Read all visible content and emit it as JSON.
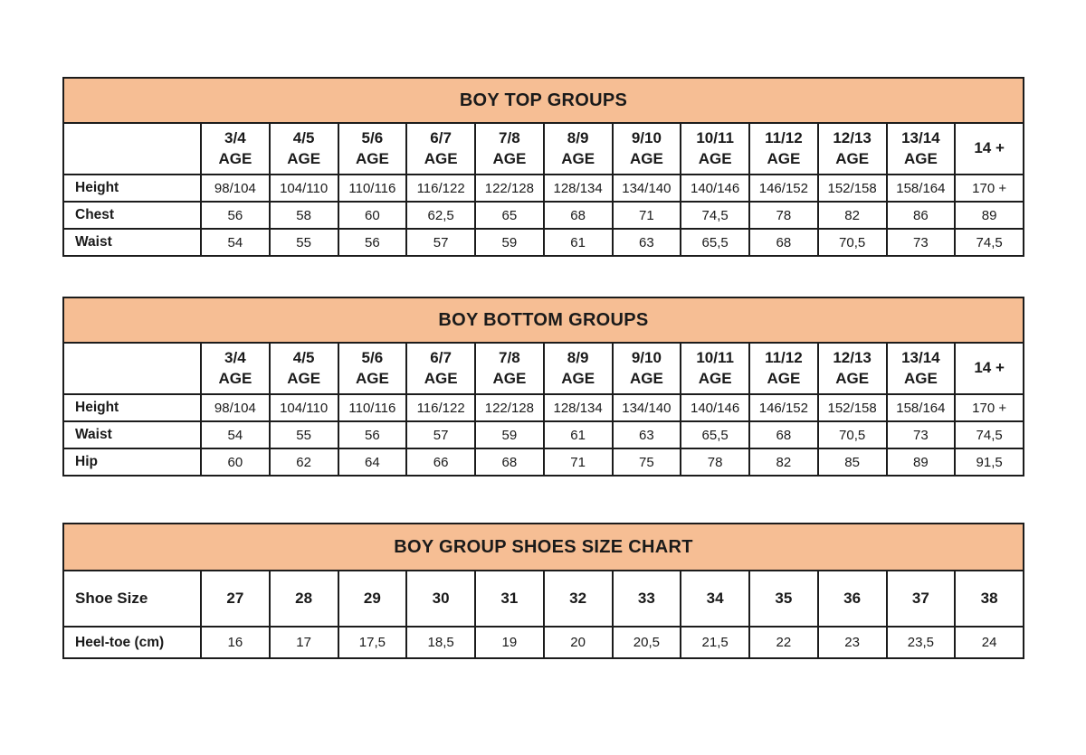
{
  "theme": {
    "header_bg": "#F6BE94",
    "border_color": "#1c1c1c",
    "text_color": "#1a1a1a",
    "page_bg": "#ffffff"
  },
  "tables": [
    {
      "title": "BOY TOP GROUPS",
      "header": {
        "label": "",
        "cells": [
          [
            "3/4",
            "AGE"
          ],
          [
            "4/5",
            "AGE"
          ],
          [
            "5/6",
            "AGE"
          ],
          [
            "6/7",
            "AGE"
          ],
          [
            "7/8",
            "AGE"
          ],
          [
            "8/9",
            "AGE"
          ],
          [
            "9/10",
            "AGE"
          ],
          [
            "10/11",
            "AGE"
          ],
          [
            "11/12",
            "AGE"
          ],
          [
            "12/13",
            "AGE"
          ],
          [
            "13/14",
            "AGE"
          ],
          [
            "14 +"
          ]
        ]
      },
      "rows": [
        {
          "label": "Height",
          "values": [
            "98/104",
            "104/110",
            "110/116",
            "116/122",
            "122/128",
            "128/134",
            "134/140",
            "140/146",
            "146/152",
            "152/158",
            "158/164",
            "170 +"
          ]
        },
        {
          "label": "Chest",
          "values": [
            "56",
            "58",
            "60",
            "62,5",
            "65",
            "68",
            "71",
            "74,5",
            "78",
            "82",
            "86",
            "89"
          ]
        },
        {
          "label": "Waist",
          "values": [
            "54",
            "55",
            "56",
            "57",
            "59",
            "61",
            "63",
            "65,5",
            "68",
            "70,5",
            "73",
            "74,5"
          ]
        }
      ]
    },
    {
      "title": "BOY BOTTOM GROUPS",
      "header": {
        "label": "",
        "cells": [
          [
            "3/4",
            "AGE"
          ],
          [
            "4/5",
            "AGE"
          ],
          [
            "5/6",
            "AGE"
          ],
          [
            "6/7",
            "AGE"
          ],
          [
            "7/8",
            "AGE"
          ],
          [
            "8/9",
            "AGE"
          ],
          [
            "9/10",
            "AGE"
          ],
          [
            "10/11",
            "AGE"
          ],
          [
            "11/12",
            "AGE"
          ],
          [
            "12/13",
            "AGE"
          ],
          [
            "13/14",
            "AGE"
          ],
          [
            "14 +"
          ]
        ]
      },
      "rows": [
        {
          "label": "Height",
          "values": [
            "98/104",
            "104/110",
            "110/116",
            "116/122",
            "122/128",
            "128/134",
            "134/140",
            "140/146",
            "146/152",
            "152/158",
            "158/164",
            "170 +"
          ]
        },
        {
          "label": "Waist",
          "values": [
            "54",
            "55",
            "56",
            "57",
            "59",
            "61",
            "63",
            "65,5",
            "68",
            "70,5",
            "73",
            "74,5"
          ]
        },
        {
          "label": "Hip",
          "values": [
            "60",
            "62",
            "64",
            "66",
            "68",
            "71",
            "75",
            "78",
            "82",
            "85",
            "89",
            "91,5"
          ]
        }
      ]
    },
    {
      "title": "BOY GROUP SHOES SIZE CHART",
      "header": {
        "label": "Shoe Size",
        "cells": [
          [
            "27"
          ],
          [
            "28"
          ],
          [
            "29"
          ],
          [
            "30"
          ],
          [
            "31"
          ],
          [
            "32"
          ],
          [
            "33"
          ],
          [
            "34"
          ],
          [
            "35"
          ],
          [
            "36"
          ],
          [
            "37"
          ],
          [
            "38"
          ]
        ]
      },
      "rows": [
        {
          "label": "Heel-toe (cm)",
          "values": [
            "16",
            "17",
            "17,5",
            "18,5",
            "19",
            "20",
            "20,5",
            "21,5",
            "22",
            "23",
            "23,5",
            "24"
          ]
        }
      ]
    }
  ]
}
